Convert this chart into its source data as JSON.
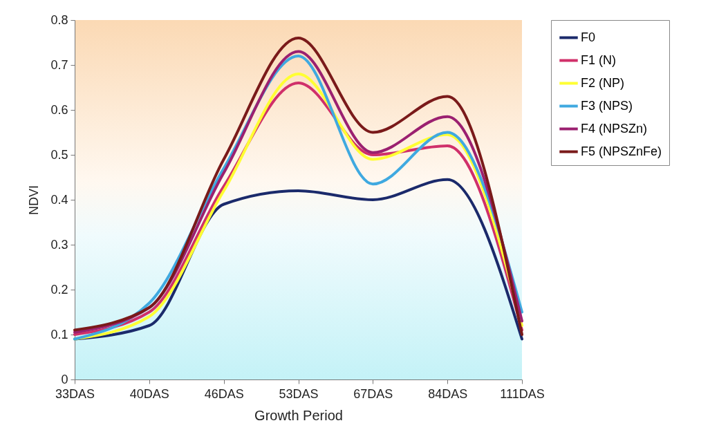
{
  "chart_data": {
    "type": "line",
    "xlabel": "Growth Period",
    "ylabel": "NDVI",
    "categories": [
      "33DAS",
      "40DAS",
      "46DAS",
      "53DAS",
      "67DAS",
      "84DAS",
      "111DAS"
    ],
    "ylim": [
      0,
      0.8
    ],
    "yticks": [
      0,
      0.1,
      0.2,
      0.3,
      0.4,
      0.5,
      0.6,
      0.7,
      0.8
    ],
    "grid": false,
    "legend": "right",
    "marker": "none",
    "line_style": "solid",
    "series": [
      {
        "name": "F0",
        "color": "#1b2a6b",
        "values": [
          0.09,
          0.12,
          0.39,
          0.42,
          0.4,
          0.445,
          0.09
        ]
      },
      {
        "name": "F1 (N)",
        "color": "#d0306a",
        "values": [
          0.1,
          0.15,
          0.43,
          0.66,
          0.5,
          0.52,
          0.11
        ]
      },
      {
        "name": "F2 (NP)",
        "color": "#ffff33",
        "values": [
          0.09,
          0.14,
          0.42,
          0.68,
          0.49,
          0.545,
          0.12
        ]
      },
      {
        "name": "F3 (NPS)",
        "color": "#3fa9e0",
        "values": [
          0.09,
          0.17,
          0.47,
          0.72,
          0.435,
          0.55,
          0.15
        ]
      },
      {
        "name": "F4 (NPSZn)",
        "color": "#9b2070",
        "values": [
          0.105,
          0.16,
          0.46,
          0.73,
          0.505,
          0.585,
          0.13
        ]
      },
      {
        "name": "F5 (NPSZnFe)",
        "color": "#7a1a1a",
        "values": [
          0.11,
          0.16,
          0.49,
          0.76,
          0.55,
          0.63,
          0.1
        ]
      }
    ]
  }
}
